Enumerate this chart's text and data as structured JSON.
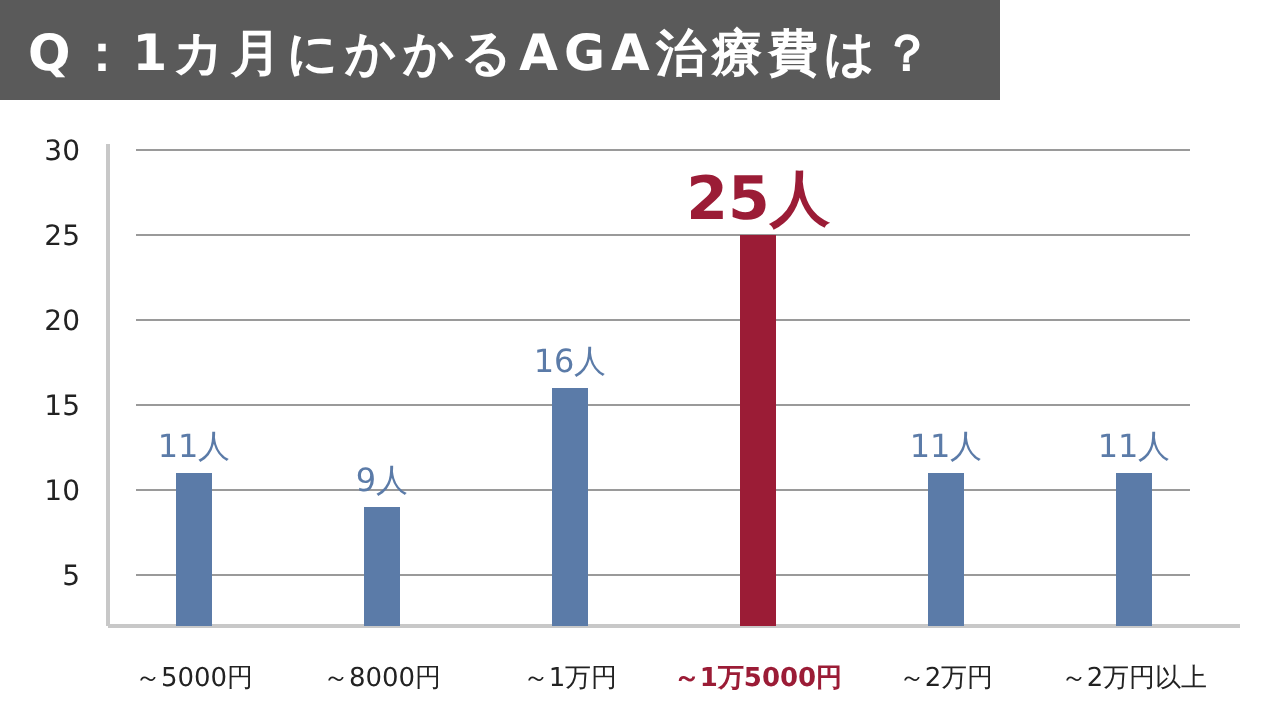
{
  "chart_data": {
    "type": "bar",
    "title": "Q：1カ月にかかるAGA治療費は？",
    "categories": [
      "～5000円",
      "～8000円",
      "～1万円",
      "～1万5000円",
      "～2万円",
      "～2万円以上"
    ],
    "values": [
      11,
      9,
      16,
      25,
      11,
      11
    ],
    "colors": [
      "#5b7ba8",
      "#5b7ba8",
      "#5b7ba8",
      "#9b1c36",
      "#5b7ba8",
      "#5b7ba8"
    ],
    "value_labels": [
      "11人",
      "9人",
      "16人",
      "25人",
      "11人",
      "11人"
    ],
    "ylim": [
      2,
      30
    ],
    "yticks": [
      5,
      10,
      15,
      20,
      25,
      30
    ],
    "grid": "y"
  }
}
